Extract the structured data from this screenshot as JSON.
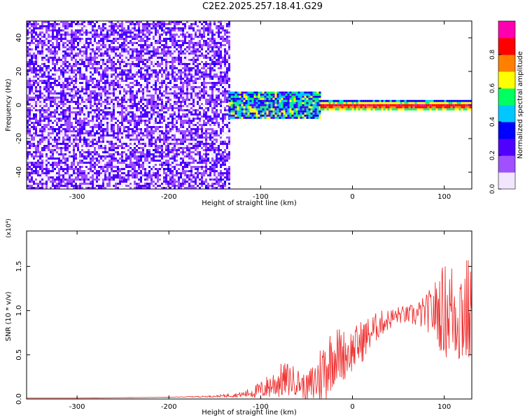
{
  "title": "C2E2.2025.257.18.41.G29",
  "chart_data": [
    {
      "type": "heatmap",
      "title": "C2E2.2025.257.18.41.G29",
      "xlabel": "Height of straight line (km)",
      "ylabel": "Frequency (Hz)",
      "xlim": [
        -355,
        130
      ],
      "ylim": [
        -50,
        50
      ],
      "x_ticks": [
        -300,
        -200,
        -100,
        0,
        100
      ],
      "y_ticks": [
        -40,
        -20,
        0,
        20,
        40
      ],
      "colorbar": {
        "label": "Normalized spectral amplitude",
        "range": [
          0,
          1
        ],
        "ticks": [
          "0.0",
          "0.2",
          "0.4",
          "0.6",
          "0.8"
        ],
        "colors": [
          "#f2e6ff",
          "#a050ff",
          "#5000ff",
          "#0000ff",
          "#00c8ff",
          "#00ff60",
          "#ffff00",
          "#ff8000",
          "#ff0000",
          "#ff00b0"
        ]
      },
      "regions": [
        {
          "x_range": [
            -355,
            -135
          ],
          "description_level": 0.18,
          "freq_range": [
            -50,
            50
          ]
        },
        {
          "x_range": [
            -135,
            -35
          ],
          "description_level": 0.45,
          "freq_range": [
            -8,
            8
          ]
        },
        {
          "x_range": [
            -35,
            130
          ],
          "description_level": 0.75,
          "freq_range": [
            -3,
            3
          ]
        }
      ]
    },
    {
      "type": "line",
      "xlabel": "Height of straight line (km)",
      "ylabel": "SNR (10 * v/v)",
      "y_multiplier": "(x10⁴)",
      "xlim": [
        -355,
        130
      ],
      "ylim": [
        0,
        1.9
      ],
      "x_ticks": [
        -300,
        -200,
        -100,
        0,
        100
      ],
      "y_ticks": [
        "0.0",
        "0.5",
        "1.0",
        "1.5"
      ],
      "series": [
        {
          "color": "#ee3333",
          "x": [
            -355,
            -300,
            -250,
            -200,
            -150,
            -120,
            -100,
            -90,
            -80,
            -70,
            -60,
            -50,
            -40,
            -30,
            -20,
            -10,
            0,
            10,
            20,
            30,
            40,
            50,
            60,
            70,
            80,
            90,
            100,
            110,
            120,
            130
          ],
          "values": [
            0.01,
            0.01,
            0.015,
            0.02,
            0.03,
            0.05,
            0.1,
            0.15,
            0.2,
            0.22,
            0.2,
            0.12,
            0.2,
            0.35,
            0.5,
            0.5,
            0.55,
            0.65,
            0.75,
            0.85,
            0.9,
            0.95,
            0.95,
            0.95,
            0.98,
            1.0,
            1.0,
            1.0,
            1.0,
            0.95
          ],
          "noise": [
            0,
            0,
            0,
            0,
            0.01,
            0.03,
            0.1,
            0.15,
            0.2,
            0.2,
            0.15,
            0.15,
            0.3,
            0.4,
            0.35,
            0.3,
            0.25,
            0.25,
            0.2,
            0.15,
            0.12,
            0.1,
            0.1,
            0.15,
            0.2,
            0.35,
            0.55,
            0.6,
            0.7,
            0.6
          ]
        }
      ]
    }
  ]
}
